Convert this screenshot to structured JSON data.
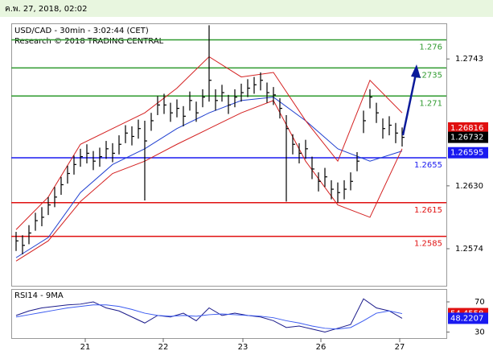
{
  "header": "ค.พ. 27, 2018, 02:02",
  "chart_data": [
    {
      "type": "hlc",
      "title": "USD/CAD - 30min - 3:02:44 (CET)",
      "subtitle": "Research © 2018 TRADING CENTRAL",
      "x": [
        0,
        1,
        2,
        3,
        4,
        5,
        6,
        7,
        8,
        9,
        10,
        11,
        12,
        13,
        14,
        15,
        16,
        17,
        18,
        19,
        20,
        21,
        22,
        23,
        24,
        25,
        26,
        27,
        28,
        29,
        30,
        31,
        32,
        33,
        34,
        35,
        36,
        37,
        38,
        39,
        40,
        41,
        42,
        43,
        44,
        45,
        46,
        47,
        48,
        49,
        50,
        51,
        52,
        53,
        54,
        55,
        56,
        57,
        58,
        59,
        60
      ],
      "high": [
        1.2589,
        1.2586,
        1.2595,
        1.2606,
        1.2611,
        1.262,
        1.2629,
        1.2638,
        1.2648,
        1.2657,
        1.2663,
        1.2667,
        1.2661,
        1.2664,
        1.267,
        1.2668,
        1.2675,
        1.2684,
        1.2683,
        1.2689,
        1.2688,
        1.2695,
        1.271,
        1.2712,
        1.2704,
        1.2707,
        1.2701,
        1.2714,
        1.2705,
        1.2716,
        1.2773,
        1.2716,
        1.272,
        1.2711,
        1.2716,
        1.2721,
        1.2725,
        1.2727,
        1.2731,
        1.2722,
        1.2718,
        1.2708,
        1.2693,
        1.2676,
        1.2668,
        1.2671,
        1.2656,
        1.2642,
        1.2646,
        1.2635,
        1.2633,
        1.2635,
        1.2642,
        1.266,
        1.2697,
        1.2716,
        1.2704,
        1.269,
        1.2692,
        1.2686,
        1.2682
      ],
      "low": [
        1.2572,
        1.2569,
        1.2578,
        1.259,
        1.2594,
        1.2604,
        1.2611,
        1.2622,
        1.2632,
        1.264,
        1.2647,
        1.265,
        1.2644,
        1.2647,
        1.2654,
        1.2651,
        1.2658,
        1.2668,
        1.2666,
        1.2672,
        1.2617,
        1.2679,
        1.2693,
        1.2694,
        1.2687,
        1.2691,
        1.2683,
        1.2697,
        1.2687,
        1.27,
        1.2705,
        1.2697,
        1.2705,
        1.2694,
        1.27,
        1.2705,
        1.2709,
        1.2712,
        1.2715,
        1.2704,
        1.2702,
        1.269,
        1.2616,
        1.2658,
        1.265,
        1.2654,
        1.2636,
        1.2625,
        1.2629,
        1.2618,
        1.2615,
        1.2618,
        1.2626,
        1.2643,
        1.2677,
        1.2699,
        1.2686,
        1.2672,
        1.2675,
        1.2668,
        1.2665
      ],
      "close": [
        1.2581,
        1.2577,
        1.2588,
        1.2599,
        1.2602,
        1.2613,
        1.262,
        1.2631,
        1.2641,
        1.2649,
        1.2656,
        1.2659,
        1.2652,
        1.2656,
        1.2663,
        1.2659,
        1.2667,
        1.2677,
        1.2674,
        1.2681,
        1.267,
        1.2688,
        1.2702,
        1.2702,
        1.2695,
        1.2699,
        1.2692,
        1.2706,
        1.2695,
        1.2709,
        1.2724,
        1.2706,
        1.2713,
        1.2702,
        1.2709,
        1.2713,
        1.2717,
        1.272,
        1.2724,
        1.2713,
        1.2711,
        1.2699,
        1.2681,
        1.2667,
        1.2659,
        1.2663,
        1.2645,
        1.2634,
        1.2638,
        1.2627,
        1.2624,
        1.2627,
        1.2634,
        1.2652,
        1.2688,
        1.2709,
        1.2695,
        1.2681,
        1.2684,
        1.2677,
        1.26732
      ],
      "bar_color": "#000000",
      "lines": [
        {
          "color": "#1f3fd0",
          "x": [
            0,
            5,
            10,
            15,
            20,
            25,
            30,
            35,
            40,
            45,
            50,
            55,
            60
          ],
          "values": [
            1.2566,
            1.2584,
            1.2624,
            1.2649,
            1.2663,
            1.2681,
            1.2695,
            1.2706,
            1.2709,
            1.2688,
            1.2663,
            1.2652,
            1.2661
          ]
        },
        {
          "color": "#d42020",
          "x": [
            0,
            5,
            10,
            15,
            20,
            25,
            30,
            35,
            40,
            45,
            50,
            55,
            60
          ],
          "values": [
            1.2591,
            1.262,
            1.2667,
            1.2681,
            1.2695,
            1.2717,
            1.2745,
            1.2727,
            1.2731,
            1.2688,
            1.2652,
            1.2724,
            1.2695
          ]
        },
        {
          "color": "#d42020",
          "x": [
            0,
            5,
            10,
            15,
            20,
            25,
            30,
            35,
            40,
            45,
            50,
            55,
            60
          ],
          "values": [
            1.2563,
            1.2581,
            1.2616,
            1.2641,
            1.2652,
            1.2667,
            1.2681,
            1.2695,
            1.2706,
            1.2652,
            1.2613,
            1.2602,
            1.2663
          ]
        }
      ],
      "levels": [
        {
          "value": 1.276,
          "color": "#2e9a2e"
        },
        {
          "value": 1.2735,
          "color": "#2e9a2e"
        },
        {
          "value": 1.271,
          "color": "#2e9a2e"
        },
        {
          "value": 1.2655,
          "color": "#1a1af0"
        },
        {
          "value": 1.2615,
          "color": "#e01010"
        },
        {
          "value": 1.2585,
          "color": "#e01010"
        }
      ],
      "price_labels": [
        {
          "value": 1.26816,
          "color": "#e01010"
        },
        {
          "value": 1.26732,
          "color": "#000000"
        },
        {
          "value": 1.26595,
          "color": "#1a1af0"
        }
      ],
      "xlim": [
        -0.75,
        66.875
      ],
      "xticks": [
        {
          "value": 10.75,
          "label": "21"
        },
        {
          "value": 22.875,
          "label": "22"
        },
        {
          "value": 35.25,
          "label": "23"
        },
        {
          "value": 47.375,
          "label": "26"
        },
        {
          "value": 59.625,
          "label": "27"
        }
      ],
      "ylim": [
        1.2541,
        1.2774
      ],
      "yticks": [
        1.2743,
        {
          "value": 1.263,
          "label": "1.2630"
        },
        1.2574
      ]
    },
    {
      "type": "line",
      "title": "RSI14 - 9MA",
      "x": [
        0,
        2,
        4,
        6,
        8,
        10,
        12,
        14,
        16,
        18,
        20,
        22,
        24,
        26,
        28,
        30,
        32,
        34,
        36,
        38,
        40,
        42,
        44,
        46,
        48,
        50,
        52,
        54,
        56,
        58,
        60
      ],
      "series": [
        {
          "color": "#1a1a8a",
          "values": [
            52,
            58,
            62,
            64,
            66,
            67,
            70,
            62,
            58,
            50,
            42,
            52,
            50,
            55,
            45,
            62,
            52,
            55,
            52,
            50,
            45,
            36,
            38,
            34,
            30,
            35,
            40,
            74,
            62,
            58,
            48.2207
          ]
        },
        {
          "color": "#3a5af0",
          "values": [
            50,
            53,
            56,
            59,
            62,
            64,
            66,
            66,
            64,
            60,
            55,
            52,
            51,
            52,
            51,
            53,
            54,
            53,
            52,
            51,
            49,
            45,
            42,
            38,
            35,
            34,
            36,
            45,
            55,
            58,
            54.4558
          ]
        }
      ],
      "value_boxes": [
        {
          "value": 54.4558,
          "color": "#e01010"
        },
        {
          "value": 48.2207,
          "color": "#1a1af0"
        }
      ],
      "xlim": [
        -0.75,
        66.875
      ],
      "ylim": [
        22,
        86
      ],
      "yticks": [
        70,
        30
      ]
    }
  ]
}
